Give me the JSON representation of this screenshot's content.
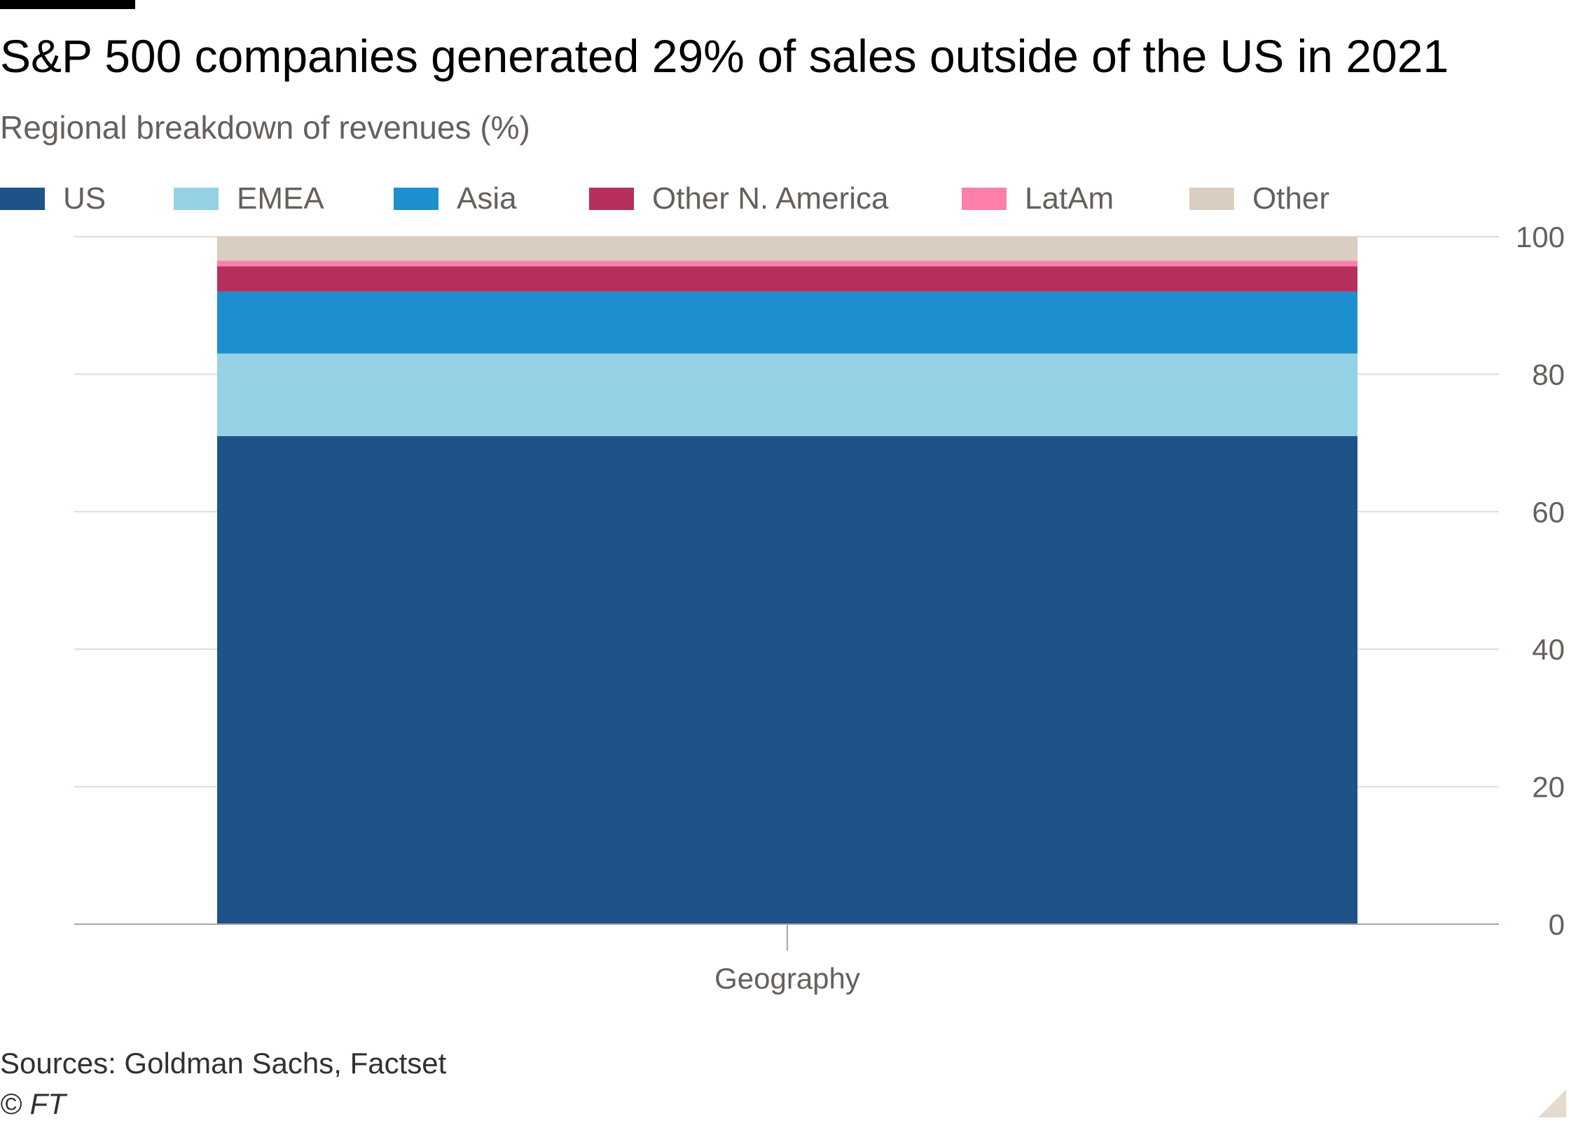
{
  "header": {
    "title": "S&P 500 companies generated 29% of sales outside of the US in 2021",
    "subtitle": "Regional breakdown of revenues (%)"
  },
  "footer": {
    "source": "Sources: Goldman Sachs, Factset",
    "copyright": "© FT"
  },
  "colors": {
    "US": "#1f5289",
    "EMEA": "#96d2e5",
    "Asia": "#1e8fce",
    "Other N. America": "#b5305e",
    "LatAm": "#ff7fab",
    "Other": "#dacdc1",
    "grid": "#e6d9ce",
    "axis_text": "#66605c"
  },
  "chart_data": {
    "type": "bar",
    "stacked": true,
    "title": "S&P 500 companies generated 29% of sales outside of the US in 2021",
    "subtitle": "Regional breakdown of revenues (%)",
    "categories": [
      "Geography"
    ],
    "xlabel": "",
    "ylabel": "",
    "ylim": [
      0,
      100
    ],
    "yticks": [
      0,
      20,
      40,
      60,
      80,
      100
    ],
    "y_axis_side": "right",
    "grid": true,
    "legend_position": "top",
    "series": [
      {
        "name": "US",
        "values": [
          71
        ]
      },
      {
        "name": "EMEA",
        "values": [
          12
        ]
      },
      {
        "name": "Asia",
        "values": [
          9
        ]
      },
      {
        "name": "Other N. America",
        "values": [
          3.7
        ]
      },
      {
        "name": "LatAm",
        "values": [
          0.8
        ]
      },
      {
        "name": "Other",
        "values": [
          3.5
        ]
      }
    ]
  }
}
